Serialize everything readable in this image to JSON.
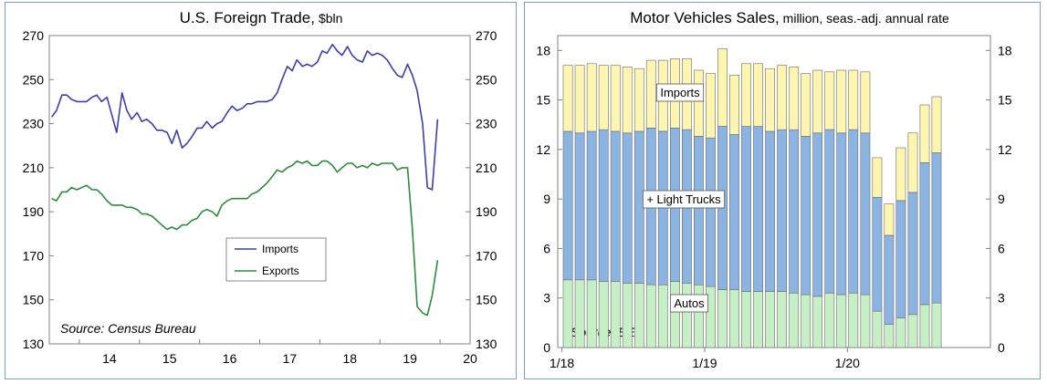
{
  "chart_data": [
    {
      "type": "line",
      "title": "U.S. Foreign Trade,",
      "title_unit": "$bln",
      "source": "Source: Census Bureau",
      "ylim": [
        130,
        270
      ],
      "y_ticks": [
        "270",
        "250",
        "230",
        "210",
        "190",
        "170",
        "150",
        "130"
      ],
      "x_ticks": [
        "14",
        "15",
        "16",
        "17",
        "18",
        "19",
        "20"
      ],
      "legend": {
        "placement": "center-right"
      },
      "series": [
        {
          "name": "Imports",
          "color": "#3e3ea8",
          "x": [
            13.54,
            13.62,
            13.71,
            13.79,
            13.87,
            13.96,
            14.04,
            14.12,
            14.21,
            14.29,
            14.37,
            14.46,
            14.54,
            14.62,
            14.71,
            14.79,
            14.87,
            14.96,
            15.04,
            15.12,
            15.21,
            15.29,
            15.37,
            15.46,
            15.54,
            15.62,
            15.71,
            15.79,
            15.87,
            15.96,
            16.04,
            16.12,
            16.21,
            16.29,
            16.37,
            16.46,
            16.54,
            16.62,
            16.71,
            16.79,
            16.87,
            16.96,
            17.04,
            17.12,
            17.21,
            17.29,
            17.37,
            17.46,
            17.54,
            17.62,
            17.71,
            17.79,
            17.87,
            17.96,
            18.04,
            18.12,
            18.21,
            18.29,
            18.37,
            18.46,
            18.54,
            18.62,
            18.71,
            18.79,
            18.87,
            18.96,
            19.04,
            19.12,
            19.21,
            19.29,
            19.37,
            19.46,
            19.54,
            19.62,
            19.71,
            19.79,
            19.87,
            19.96
          ],
          "values": [
            233,
            236,
            243,
            243,
            241,
            240,
            240,
            240,
            242,
            243,
            240,
            242,
            234,
            226,
            244,
            236,
            232,
            235,
            231,
            232,
            230,
            227,
            227,
            226,
            221,
            227,
            219,
            221,
            224,
            228,
            228,
            231,
            228,
            230,
            231,
            235,
            238,
            236,
            237,
            239,
            239,
            240,
            240,
            240,
            241,
            244,
            250,
            256,
            254,
            259,
            256,
            257,
            256,
            258,
            263,
            262,
            266,
            263,
            261,
            265,
            261,
            259,
            258,
            263,
            261,
            262,
            261,
            259,
            255,
            252,
            251,
            257,
            252,
            245,
            230,
            201,
            200,
            232
          ]
        },
        {
          "name": "Exports",
          "color": "#2e8b3e",
          "x": [
            13.54,
            13.62,
            13.71,
            13.79,
            13.87,
            13.96,
            14.04,
            14.12,
            14.21,
            14.29,
            14.37,
            14.46,
            14.54,
            14.62,
            14.71,
            14.79,
            14.87,
            14.96,
            15.04,
            15.12,
            15.21,
            15.29,
            15.37,
            15.46,
            15.54,
            15.62,
            15.71,
            15.79,
            15.87,
            15.96,
            16.04,
            16.12,
            16.21,
            16.29,
            16.37,
            16.46,
            16.54,
            16.62,
            16.71,
            16.79,
            16.87,
            16.96,
            17.04,
            17.12,
            17.21,
            17.29,
            17.37,
            17.46,
            17.54,
            17.62,
            17.71,
            17.79,
            17.87,
            17.96,
            18.04,
            18.12,
            18.21,
            18.29,
            18.37,
            18.46,
            18.54,
            18.62,
            18.71,
            18.79,
            18.87,
            18.96,
            19.04,
            19.12,
            19.21,
            19.29,
            19.37,
            19.46,
            19.54,
            19.62,
            19.71,
            19.79,
            19.87,
            19.96
          ],
          "values": [
            196,
            195,
            199,
            199,
            201,
            200,
            201,
            202,
            200,
            200,
            198,
            195,
            193,
            193,
            193,
            192,
            192,
            191,
            189,
            189,
            188,
            186,
            184,
            182,
            183,
            182,
            184,
            184,
            186,
            187,
            190,
            191,
            190,
            188,
            193,
            195,
            196,
            196,
            196,
            196,
            198,
            199,
            201,
            203,
            206,
            209,
            208,
            210,
            211,
            213,
            212,
            213,
            211,
            211,
            213,
            213,
            211,
            208,
            210,
            212,
            212,
            210,
            211,
            210,
            212,
            211,
            212,
            212,
            212,
            209,
            210,
            210,
            182,
            147,
            144,
            143,
            152,
            168
          ]
        }
      ]
    },
    {
      "type": "bar",
      "stacked": true,
      "title": "Motor Vehicles Sales,",
      "title_unit": "million, seas.-adj. annual rate",
      "source": "Source: BEA",
      "ylim": [
        0,
        18.9
      ],
      "y_ticks": [
        "18",
        "15",
        "12",
        "9",
        "6",
        "3",
        "0"
      ],
      "x_ticks": [
        "1/18",
        "1/19",
        "1/20"
      ],
      "annotations": [
        "Imports",
        "+ Light Trucks",
        "Autos"
      ],
      "colors": {
        "autos": "#c6efc6",
        "light_trucks": "#8cb4e2",
        "imports": "#fdf5b0"
      },
      "categories": [
        "Jan 18",
        "Feb 18",
        "Mar 18",
        "Apr 18",
        "May 18",
        "Jun 18",
        "Jul 18",
        "Aug 18",
        "Sep 18",
        "Oct 18",
        "Nov 18",
        "Dec 18",
        "Jan 19",
        "Feb 19",
        "Mar 19",
        "Apr 19",
        "May 19",
        "Jun 19",
        "Jul 19",
        "Aug 19",
        "Sep 19",
        "Oct 19",
        "Nov 19",
        "Dec 19",
        "Jan 20",
        "Feb 20",
        "Mar 20",
        "Apr 20",
        "May 20",
        "Jun 20",
        "Jul 20",
        "Aug 20"
      ],
      "series": [
        {
          "name": "Autos",
          "values": [
            4.1,
            4.1,
            4.1,
            4.0,
            4.0,
            3.9,
            3.9,
            3.8,
            3.8,
            4.0,
            3.9,
            3.8,
            3.7,
            3.5,
            3.5,
            3.4,
            3.4,
            3.4,
            3.4,
            3.3,
            3.2,
            3.1,
            3.3,
            3.2,
            3.3,
            3.2,
            2.2,
            1.4,
            1.8,
            2.0,
            2.6,
            2.7
          ]
        },
        {
          "name": "Light Trucks",
          "values": [
            9.0,
            8.9,
            9.0,
            9.2,
            9.1,
            9.1,
            9.2,
            9.5,
            9.3,
            9.3,
            9.3,
            9.0,
            9.0,
            9.9,
            9.4,
            10.0,
            10.0,
            9.7,
            9.8,
            9.9,
            9.6,
            9.9,
            9.9,
            9.8,
            9.9,
            9.8,
            6.9,
            5.4,
            7.1,
            7.4,
            8.6,
            9.1
          ]
        },
        {
          "name": "Imports",
          "values": [
            4.0,
            4.1,
            4.1,
            3.9,
            4.0,
            4.0,
            3.8,
            4.1,
            4.3,
            4.2,
            4.3,
            4.0,
            3.9,
            4.7,
            3.6,
            3.8,
            3.8,
            3.8,
            3.9,
            3.8,
            3.8,
            3.8,
            3.5,
            3.8,
            3.6,
            3.7,
            2.4,
            1.9,
            3.2,
            3.6,
            3.5,
            3.4
          ]
        }
      ]
    }
  ]
}
